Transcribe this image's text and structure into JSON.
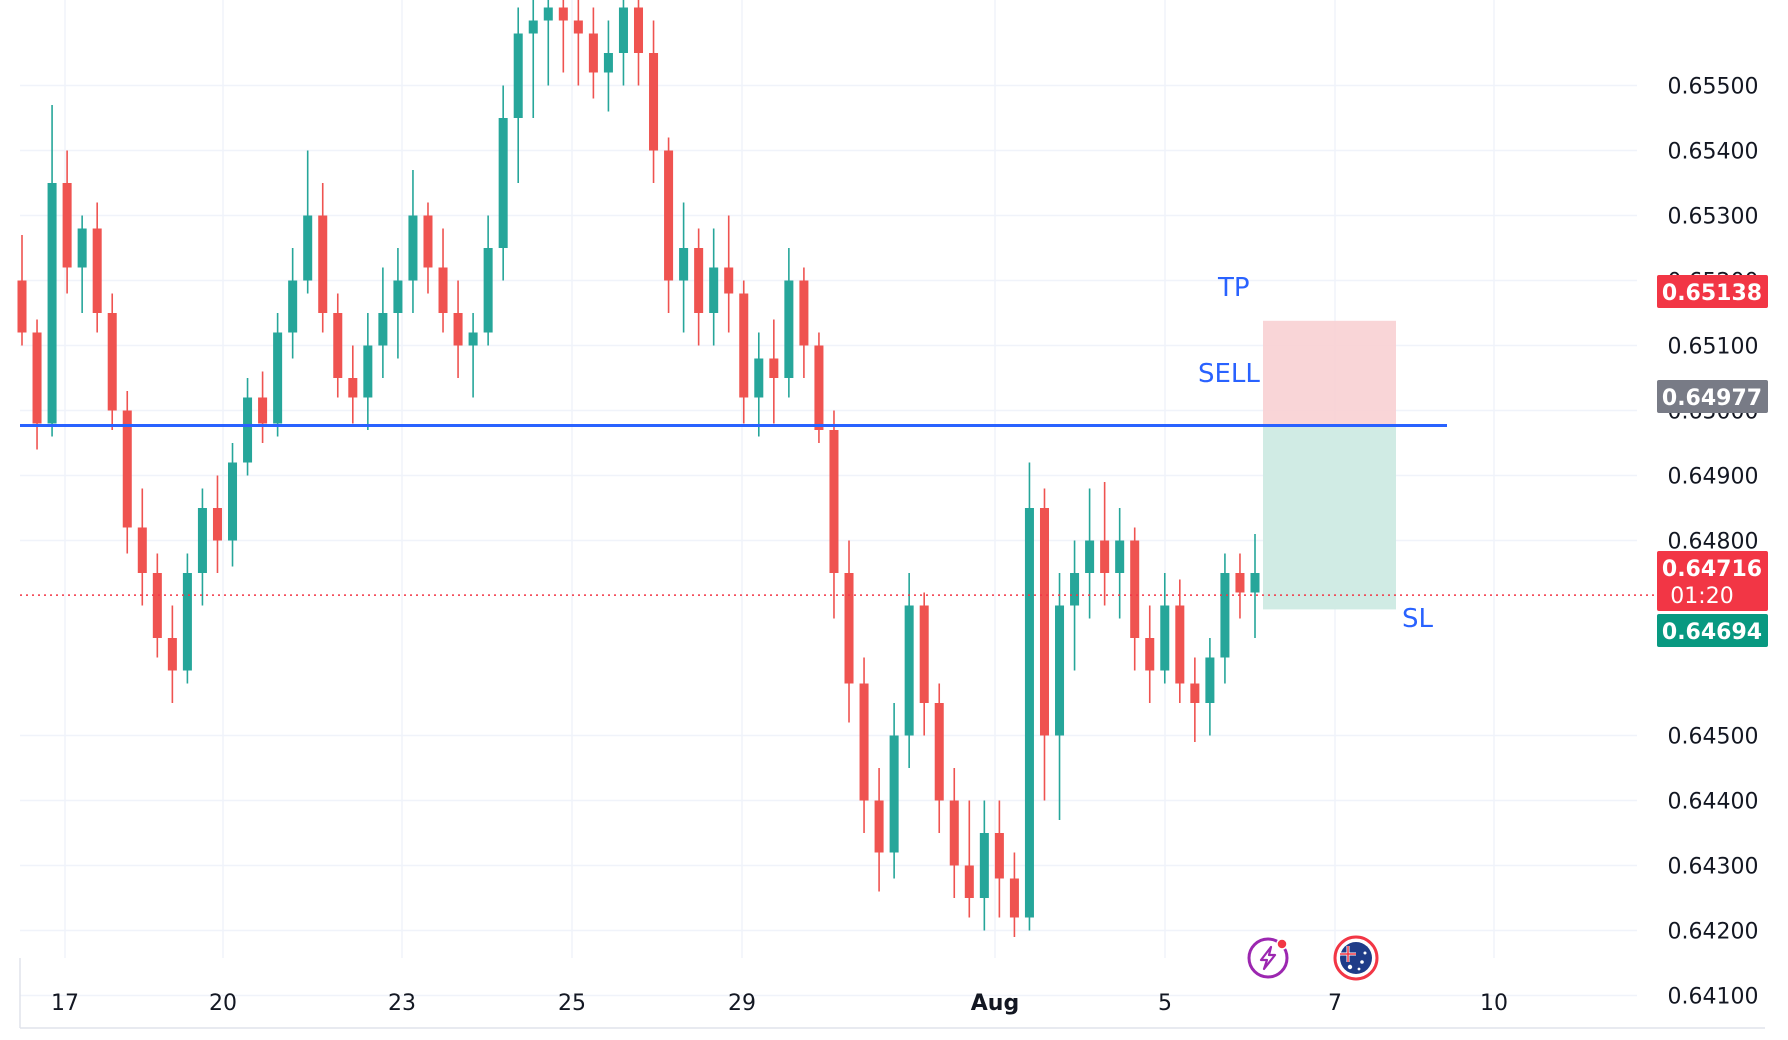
{
  "chart_data": {
    "type": "candlestick",
    "x_tick_labels": [
      "17",
      "20",
      "23",
      "25",
      "29",
      "Aug",
      "5",
      "7",
      "10"
    ],
    "y_tick_labels": [
      "0.65500",
      "0.65400",
      "0.65300",
      "0.65200",
      "0.65100",
      "0.65000",
      "0.64900",
      "0.64800",
      "0.64500",
      "0.64400",
      "0.64300",
      "0.64200",
      "0.64100"
    ],
    "ylim": [
      0.6408,
      0.6556
    ],
    "grid": true,
    "ohlc": [
      [
        0.652,
        0.6527,
        0.651,
        0.6512
      ],
      [
        0.6512,
        0.6514,
        0.6494,
        0.6498
      ],
      [
        0.6498,
        0.6547,
        0.6496,
        0.6535
      ],
      [
        0.6535,
        0.654,
        0.6518,
        0.6522
      ],
      [
        0.6522,
        0.653,
        0.6515,
        0.6528
      ],
      [
        0.6528,
        0.6532,
        0.6512,
        0.6515
      ],
      [
        0.6515,
        0.6518,
        0.6497,
        0.65
      ],
      [
        0.65,
        0.6503,
        0.6478,
        0.6482
      ],
      [
        0.6482,
        0.6488,
        0.647,
        0.6475
      ],
      [
        0.6475,
        0.6478,
        0.6462,
        0.6465
      ],
      [
        0.6465,
        0.647,
        0.6455,
        0.646
      ],
      [
        0.646,
        0.6478,
        0.6458,
        0.6475
      ],
      [
        0.6475,
        0.6488,
        0.647,
        0.6485
      ],
      [
        0.6485,
        0.649,
        0.6475,
        0.648
      ],
      [
        0.648,
        0.6495,
        0.6476,
        0.6492
      ],
      [
        0.6492,
        0.6505,
        0.649,
        0.6502
      ],
      [
        0.6502,
        0.6506,
        0.6495,
        0.6498
      ],
      [
        0.6498,
        0.6515,
        0.6496,
        0.6512
      ],
      [
        0.6512,
        0.6525,
        0.6508,
        0.652
      ],
      [
        0.652,
        0.654,
        0.6518,
        0.653
      ],
      [
        0.653,
        0.6535,
        0.6512,
        0.6515
      ],
      [
        0.6515,
        0.6518,
        0.6502,
        0.6505
      ],
      [
        0.6505,
        0.651,
        0.6498,
        0.6502
      ],
      [
        0.6502,
        0.6515,
        0.6497,
        0.651
      ],
      [
        0.651,
        0.6522,
        0.6505,
        0.6515
      ],
      [
        0.6515,
        0.6525,
        0.6508,
        0.652
      ],
      [
        0.652,
        0.6537,
        0.6515,
        0.653
      ],
      [
        0.653,
        0.6532,
        0.6518,
        0.6522
      ],
      [
        0.6522,
        0.6528,
        0.6512,
        0.6515
      ],
      [
        0.6515,
        0.652,
        0.6505,
        0.651
      ],
      [
        0.651,
        0.6515,
        0.6502,
        0.6512
      ],
      [
        0.6512,
        0.653,
        0.651,
        0.6525
      ],
      [
        0.6525,
        0.655,
        0.652,
        0.6545
      ],
      [
        0.6545,
        0.6562,
        0.6535,
        0.6558
      ],
      [
        0.6558,
        0.6565,
        0.6545,
        0.656
      ],
      [
        0.656,
        0.6565,
        0.655,
        0.6562
      ],
      [
        0.6562,
        0.6566,
        0.6552,
        0.656
      ],
      [
        0.656,
        0.6565,
        0.655,
        0.6558
      ],
      [
        0.6558,
        0.6562,
        0.6548,
        0.6552
      ],
      [
        0.6552,
        0.656,
        0.6546,
        0.6555
      ],
      [
        0.6555,
        0.6568,
        0.655,
        0.6562
      ],
      [
        0.6562,
        0.6566,
        0.655,
        0.6555
      ],
      [
        0.6555,
        0.656,
        0.6535,
        0.654
      ],
      [
        0.654,
        0.6542,
        0.6515,
        0.652
      ],
      [
        0.652,
        0.6532,
        0.6512,
        0.6525
      ],
      [
        0.6525,
        0.6528,
        0.651,
        0.6515
      ],
      [
        0.6515,
        0.6528,
        0.651,
        0.6522
      ],
      [
        0.6522,
        0.653,
        0.6512,
        0.6518
      ],
      [
        0.6518,
        0.652,
        0.6498,
        0.6502
      ],
      [
        0.6502,
        0.6512,
        0.6496,
        0.6508
      ],
      [
        0.6508,
        0.6514,
        0.6498,
        0.6505
      ],
      [
        0.6505,
        0.6525,
        0.6502,
        0.652
      ],
      [
        0.652,
        0.6522,
        0.6505,
        0.651
      ],
      [
        0.651,
        0.6512,
        0.6495,
        0.6497
      ],
      [
        0.6497,
        0.65,
        0.6468,
        0.6475
      ],
      [
        0.6475,
        0.648,
        0.6452,
        0.6458
      ],
      [
        0.6458,
        0.6462,
        0.6435,
        0.644
      ],
      [
        0.644,
        0.6445,
        0.6426,
        0.6432
      ],
      [
        0.6432,
        0.6455,
        0.6428,
        0.645
      ],
      [
        0.645,
        0.6475,
        0.6445,
        0.647
      ],
      [
        0.647,
        0.6472,
        0.645,
        0.6455
      ],
      [
        0.6455,
        0.6458,
        0.6435,
        0.644
      ],
      [
        0.644,
        0.6445,
        0.6425,
        0.643
      ],
      [
        0.643,
        0.644,
        0.6422,
        0.6425
      ],
      [
        0.6425,
        0.644,
        0.642,
        0.6435
      ],
      [
        0.6435,
        0.644,
        0.6422,
        0.6428
      ],
      [
        0.6428,
        0.6432,
        0.6419,
        0.6422
      ],
      [
        0.6422,
        0.6492,
        0.642,
        0.6485
      ],
      [
        0.6485,
        0.6488,
        0.644,
        0.645
      ],
      [
        0.645,
        0.6475,
        0.6437,
        0.647
      ],
      [
        0.647,
        0.648,
        0.646,
        0.6475
      ],
      [
        0.6475,
        0.6488,
        0.6468,
        0.648
      ],
      [
        0.648,
        0.6489,
        0.647,
        0.6475
      ],
      [
        0.6475,
        0.6485,
        0.6468,
        0.648
      ],
      [
        0.648,
        0.6482,
        0.646,
        0.6465
      ],
      [
        0.6465,
        0.647,
        0.6455,
        0.646
      ],
      [
        0.646,
        0.6475,
        0.6458,
        0.647
      ],
      [
        0.647,
        0.6474,
        0.6455,
        0.6458
      ],
      [
        0.6458,
        0.6462,
        0.6449,
        0.6455
      ],
      [
        0.6455,
        0.6465,
        0.645,
        0.6462
      ],
      [
        0.6462,
        0.6478,
        0.6458,
        0.6475
      ],
      [
        0.6475,
        0.6478,
        0.6468,
        0.6472
      ],
      [
        0.6472,
        0.6481,
        0.6465,
        0.6475
      ]
    ],
    "levels": {
      "sell": "0.64977",
      "tp": "0.65138",
      "sl": "0.64694",
      "current": "0.64716"
    },
    "annotations": {
      "tp_label": "TP",
      "sell_label": "SELL",
      "sl_label": "SL"
    },
    "price_tags": {
      "tp": "0.65138",
      "sell": "0.64977",
      "current": "0.64716",
      "countdown": "01:20",
      "sl": "0.64694"
    },
    "colors": {
      "up": "#26a69a",
      "down": "#ef5350",
      "sell_line": "#2962ff",
      "tp_zone": "#f8d0d3",
      "sl_zone": "#cdeae3",
      "current_line": "#f23645",
      "tag_gray": "#787b86",
      "tag_red": "#f23645",
      "tag_green": "#089981"
    },
    "icons": [
      "lightning-event-icon",
      "australia-flag-icon"
    ]
  }
}
